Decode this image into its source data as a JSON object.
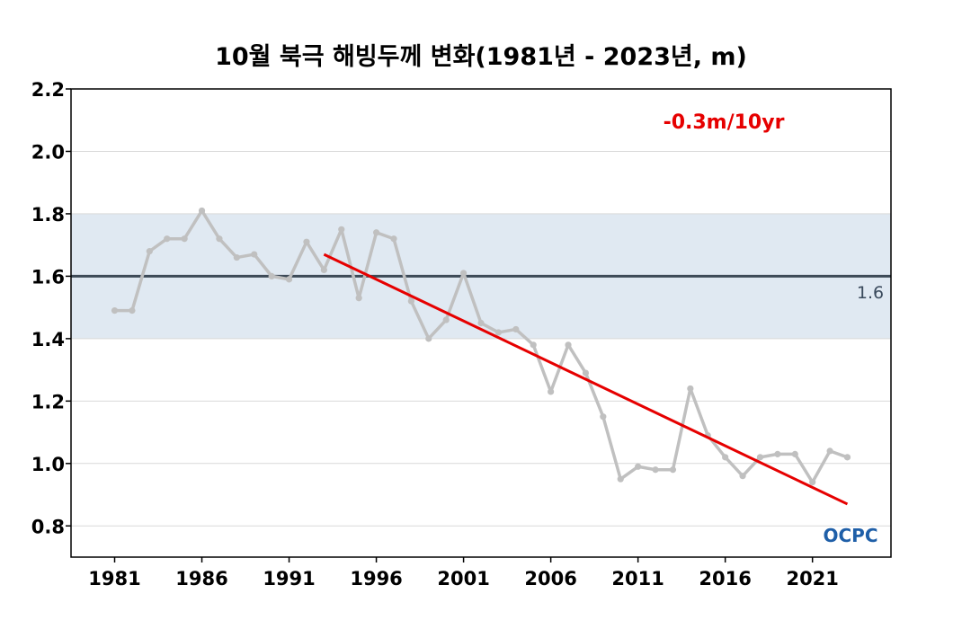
{
  "chart_data": {
    "type": "line",
    "title": "10월 북극 해빙두께 변화(1981년 - 2023년, m)",
    "xlabel": "",
    "ylabel": "",
    "ylim": [
      0.7,
      2.2
    ],
    "xlim": [
      1978.5,
      2025.5
    ],
    "y_ticks": [
      "0.8",
      "1.0",
      "1.2",
      "1.4",
      "1.6",
      "1.8",
      "2.0",
      "2.2"
    ],
    "x_ticks": [
      "1981",
      "1986",
      "1991",
      "1996",
      "2001",
      "2006",
      "2011",
      "2016",
      "2021"
    ],
    "grid": true,
    "x": [
      1981,
      1982,
      1983,
      1984,
      1985,
      1986,
      1987,
      1988,
      1989,
      1990,
      1991,
      1992,
      1993,
      1994,
      1995,
      1996,
      1997,
      1998,
      1999,
      2000,
      2001,
      2002,
      2003,
      2004,
      2005,
      2006,
      2007,
      2008,
      2009,
      2010,
      2011,
      2012,
      2013,
      2014,
      2015,
      2016,
      2017,
      2018,
      2019,
      2020,
      2021,
      2022,
      2023
    ],
    "series": [
      {
        "values": [
          1.49,
          1.49,
          1.68,
          1.72,
          1.72,
          1.81,
          1.72,
          1.66,
          1.67,
          1.6,
          1.59,
          1.71,
          1.62,
          1.75,
          1.53,
          1.74,
          1.72,
          1.52,
          1.4,
          1.46,
          1.61,
          1.45,
          1.42,
          1.43,
          1.38,
          1.23,
          1.38,
          1.29,
          1.15,
          0.95,
          0.99,
          0.98,
          0.98,
          1.24,
          1.09,
          1.02,
          0.96,
          1.02,
          1.03,
          1.03,
          0.94,
          1.04,
          1.02
        ],
        "color": "#c0c0c0"
      }
    ],
    "trend": {
      "x": [
        1993,
        2023
      ],
      "y": [
        1.67,
        0.87
      ],
      "label": "-0.3m/10yr",
      "color": "#e60000"
    },
    "reference": {
      "value": 1.6,
      "label": "1.6",
      "band": [
        1.4,
        1.8
      ],
      "line_color": "#3d4a57",
      "band_color": "#e0e9f2"
    },
    "watermark": "OCPC"
  }
}
